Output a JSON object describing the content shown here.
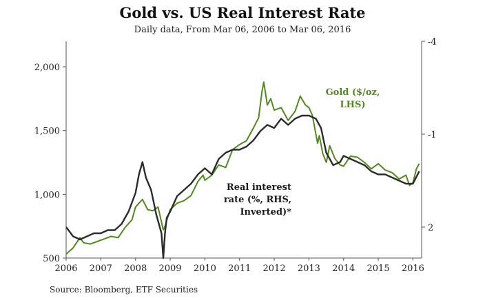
{
  "chart_data": {
    "type": "line",
    "title": "Gold vs. US Real Interest Rate",
    "subtitle": "Daily data, From Mar 06, 2006 to Mar 06, 2016",
    "source": "Source: Bloomberg, ETF Securities",
    "x_range": [
      2006.0,
      2016.25
    ],
    "x_ticks": [
      2006,
      2007,
      2008,
      2009,
      2010,
      2011,
      2012,
      2013,
      2014,
      2015,
      2016
    ],
    "y_left": {
      "range": [
        500,
        2200
      ],
      "ticks": [
        500,
        1000,
        1500,
        2000
      ],
      "tick_labels": [
        "500",
        "1,000",
        "1,500",
        "2,000"
      ]
    },
    "y_right": {
      "range": [
        -4,
        3
      ],
      "inverted": true,
      "ticks": [
        -4,
        -1,
        2
      ],
      "tick_labels": [
        "-4",
        "-1",
        "2"
      ]
    },
    "grid": false,
    "series": [
      {
        "name": "Gold ($/oz, LHS)",
        "label_lines": [
          "Gold ($/oz,",
          "LHS)"
        ],
        "axis": "left",
        "color": "#4f8a1c",
        "x": [
          2006.0,
          2006.2,
          2006.4,
          2006.5,
          2006.7,
          2006.9,
          2007.1,
          2007.3,
          2007.5,
          2007.7,
          2007.9,
          2008.0,
          2008.1,
          2008.2,
          2008.35,
          2008.5,
          2008.65,
          2008.8,
          2008.85,
          2009.0,
          2009.2,
          2009.4,
          2009.6,
          2009.8,
          2009.95,
          2010.0,
          2010.2,
          2010.4,
          2010.6,
          2010.8,
          2011.0,
          2011.2,
          2011.4,
          2011.55,
          2011.65,
          2011.7,
          2011.8,
          2011.9,
          2012.0,
          2012.2,
          2012.4,
          2012.6,
          2012.75,
          2012.9,
          2013.0,
          2013.1,
          2013.25,
          2013.3,
          2013.4,
          2013.5,
          2013.6,
          2013.75,
          2013.9,
          2014.0,
          2014.2,
          2014.4,
          2014.6,
          2014.8,
          2015.0,
          2015.2,
          2015.4,
          2015.6,
          2015.8,
          2015.9,
          2016.0,
          2016.1,
          2016.18
        ],
        "values": [
          530,
          580,
          660,
          620,
          610,
          630,
          650,
          670,
          660,
          740,
          800,
          900,
          930,
          960,
          880,
          870,
          900,
          720,
          750,
          880,
          930,
          950,
          990,
          1100,
          1150,
          1110,
          1150,
          1230,
          1210,
          1350,
          1390,
          1420,
          1520,
          1600,
          1810,
          1880,
          1700,
          1750,
          1660,
          1680,
          1580,
          1650,
          1770,
          1700,
          1680,
          1620,
          1400,
          1460,
          1320,
          1250,
          1380,
          1280,
          1230,
          1220,
          1300,
          1290,
          1250,
          1200,
          1240,
          1190,
          1170,
          1120,
          1150,
          1070,
          1090,
          1200,
          1240
        ]
      },
      {
        "name": "Real interest rate (%, RHS, Inverted)*",
        "label_lines": [
          "Real interest",
          "rate (%, RHS,",
          "Inverted)*"
        ],
        "axis": "right",
        "color": "#2b2b2b",
        "x": [
          2006.0,
          2006.2,
          2006.4,
          2006.6,
          2006.8,
          2007.0,
          2007.2,
          2007.4,
          2007.6,
          2007.8,
          2008.0,
          2008.1,
          2008.2,
          2008.3,
          2008.45,
          2008.6,
          2008.75,
          2008.8,
          2008.85,
          2008.9,
          2009.0,
          2009.2,
          2009.4,
          2009.6,
          2009.8,
          2010.0,
          2010.2,
          2010.4,
          2010.6,
          2010.8,
          2011.0,
          2011.2,
          2011.4,
          2011.6,
          2011.8,
          2012.0,
          2012.2,
          2012.4,
          2012.6,
          2012.8,
          2013.0,
          2013.2,
          2013.35,
          2013.5,
          2013.7,
          2013.9,
          2014.0,
          2014.2,
          2014.4,
          2014.6,
          2014.8,
          2015.0,
          2015.2,
          2015.4,
          2015.6,
          2015.8,
          2016.0,
          2016.18
        ],
        "values": [
          2.0,
          2.3,
          2.4,
          2.3,
          2.2,
          2.2,
          2.1,
          2.1,
          1.9,
          1.5,
          0.9,
          0.3,
          -0.1,
          0.4,
          0.8,
          1.6,
          2.2,
          3.0,
          2.2,
          1.7,
          1.5,
          1.0,
          0.8,
          0.6,
          0.3,
          0.1,
          0.3,
          -0.2,
          -0.4,
          -0.5,
          -0.5,
          -0.6,
          -0.8,
          -1.1,
          -1.3,
          -1.2,
          -1.5,
          -1.3,
          -1.5,
          -1.6,
          -1.6,
          -1.5,
          -1.2,
          -0.4,
          0.0,
          -0.1,
          -0.3,
          -0.2,
          -0.1,
          0.0,
          0.2,
          0.3,
          0.3,
          0.4,
          0.5,
          0.6,
          0.6,
          0.2
        ]
      }
    ]
  }
}
